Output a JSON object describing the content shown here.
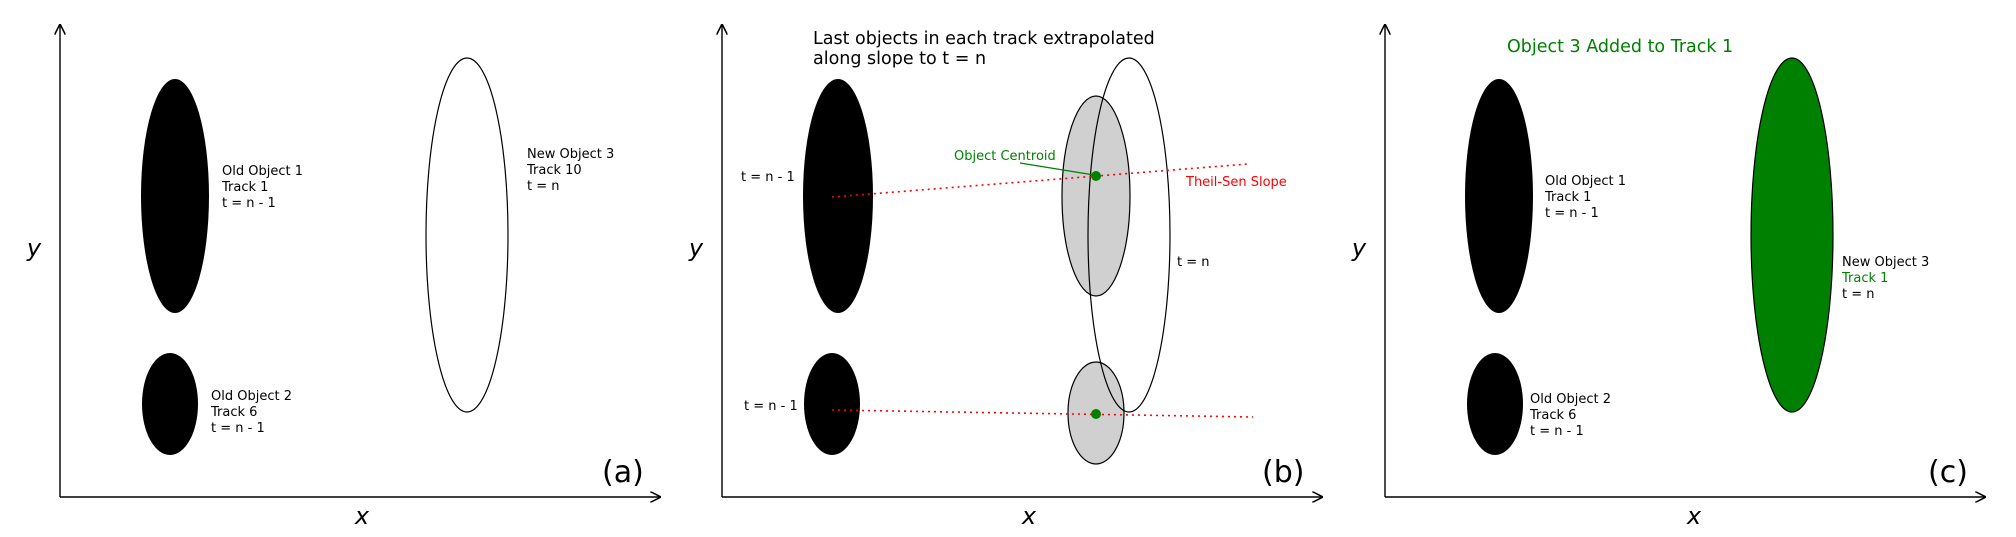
{
  "colors": {
    "black": "#000000",
    "green": "#008000",
    "red": "#ff0000",
    "gray": "#d0d0d0",
    "white": "#ffffff"
  },
  "axes": {
    "x_label": "x",
    "y_label": "y"
  },
  "panel_a": {
    "tag": "(a)",
    "obj1": [
      "Old Object 1",
      "Track 1",
      "t = n - 1"
    ],
    "obj2": [
      "Old Object 2",
      "Track 6",
      "t = n - 1"
    ],
    "obj3": [
      "New Object 3",
      "Track 10",
      "t = n"
    ]
  },
  "panel_b": {
    "tag": "(b)",
    "title": [
      "Last objects in each track extrapolated",
      "along slope to t = n"
    ],
    "t_prev_upper": "t = n - 1",
    "t_prev_lower": "t = n - 1",
    "t_now": "t = n",
    "centroid_label": "Object Centroid",
    "slope_label": "Theil-Sen Slope"
  },
  "panel_c": {
    "tag": "(c)",
    "title": "Object 3 Added to Track 1",
    "obj1": [
      "Old Object 1",
      "Track 1",
      "t = n - 1"
    ],
    "obj2": [
      "Old Object 2",
      "Track 6",
      "t = n - 1"
    ],
    "obj3": [
      "New Object 3",
      "Track 1",
      "t = n"
    ]
  }
}
